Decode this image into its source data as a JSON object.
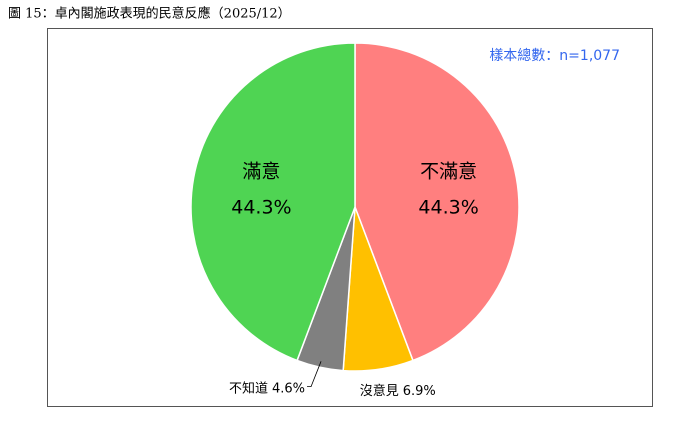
{
  "chart_data": {
    "type": "pie",
    "title": "圖 15：卓內閣施政表現的民意反應（2025/12）",
    "annotation": "樣本總數：n=1,077",
    "categories": [
      "不滿意",
      "沒意見",
      "不知道",
      "滿意"
    ],
    "values": [
      44.3,
      6.9,
      4.6,
      44.3
    ],
    "value_labels": [
      "44.3%",
      "6.9%",
      "4.6%",
      "44.3%"
    ],
    "colors": [
      "#ff7f7f",
      "#ffc000",
      "#808080",
      "#4fd453"
    ]
  }
}
